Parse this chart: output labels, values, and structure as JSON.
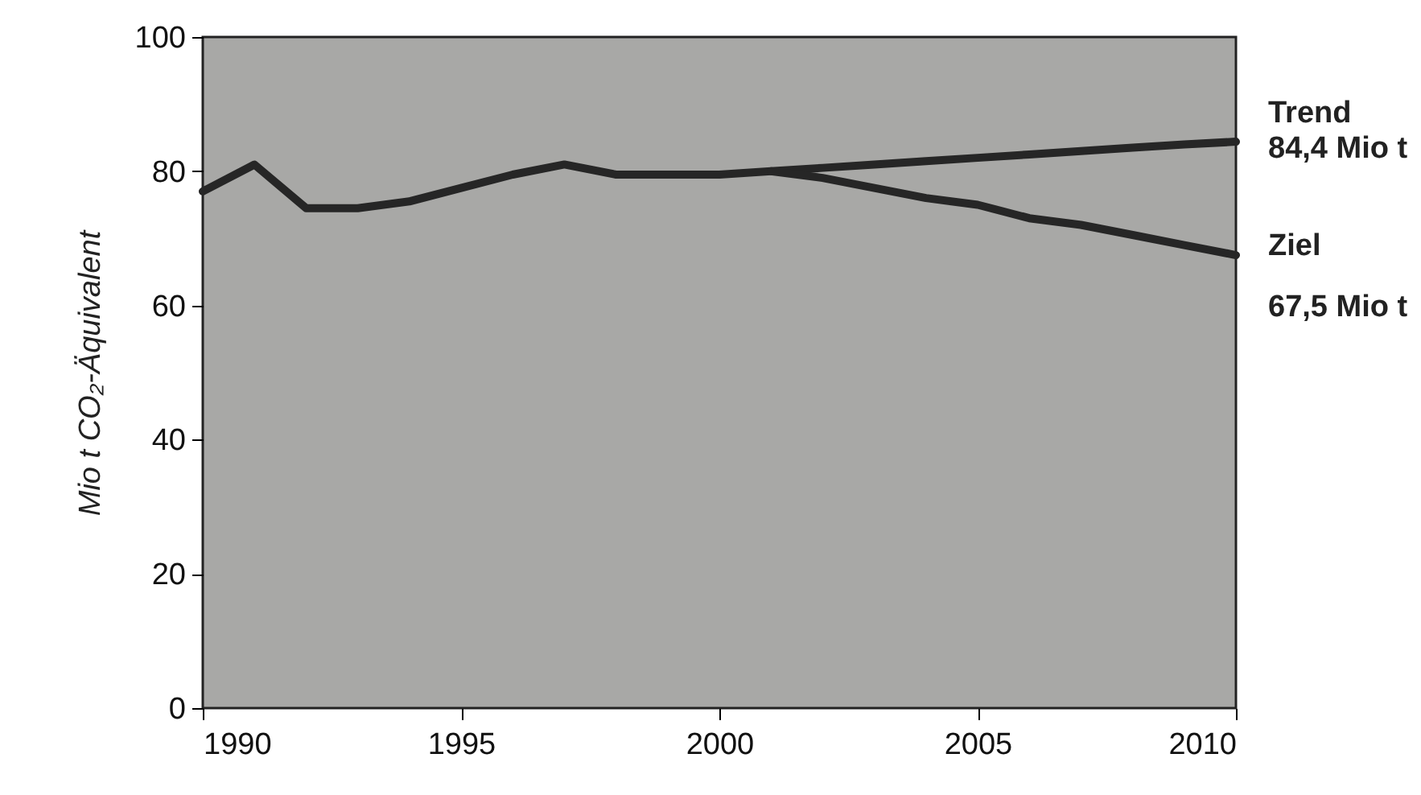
{
  "chart_data": {
    "type": "line",
    "ylabel": "Mio t CO₂-Äquivalent",
    "xlim": [
      1990,
      2010
    ],
    "xticks": [
      1990,
      1995,
      2000,
      2005,
      2010
    ],
    "ylim": [
      0,
      100
    ],
    "yticks": [
      0,
      20,
      40,
      60,
      80,
      100
    ],
    "grid": false,
    "legend": false,
    "marker": "none",
    "line_style": "solid",
    "series": [
      {
        "name": "Trend",
        "color": "#262626",
        "x": [
          1990,
          1991,
          1992,
          1993,
          1994,
          1995,
          1996,
          1997,
          1998,
          1999,
          2000,
          2001,
          2002,
          2003,
          2004,
          2005,
          2006,
          2007,
          2008,
          2009,
          2010
        ],
        "values": [
          77,
          81,
          74.5,
          74.5,
          75.5,
          77.5,
          79.5,
          81,
          79.5,
          79.5,
          79.5,
          80,
          80.5,
          81,
          81.5,
          82,
          82.5,
          83,
          83.5,
          84,
          84.4
        ]
      },
      {
        "name": "Ziel",
        "color": "#262626",
        "x": [
          2001,
          2002,
          2003,
          2004,
          2005,
          2006,
          2007,
          2008,
          2009,
          2010
        ],
        "values": [
          80,
          79,
          77.5,
          76,
          75,
          73,
          72,
          70.5,
          69,
          67.5
        ]
      }
    ],
    "annotations": [
      {
        "text": "84,4 Mio t",
        "x": 2010,
        "y": 84.4
      },
      {
        "text": "67,5 Mio t",
        "x": 2010,
        "y": 67.5
      }
    ]
  }
}
